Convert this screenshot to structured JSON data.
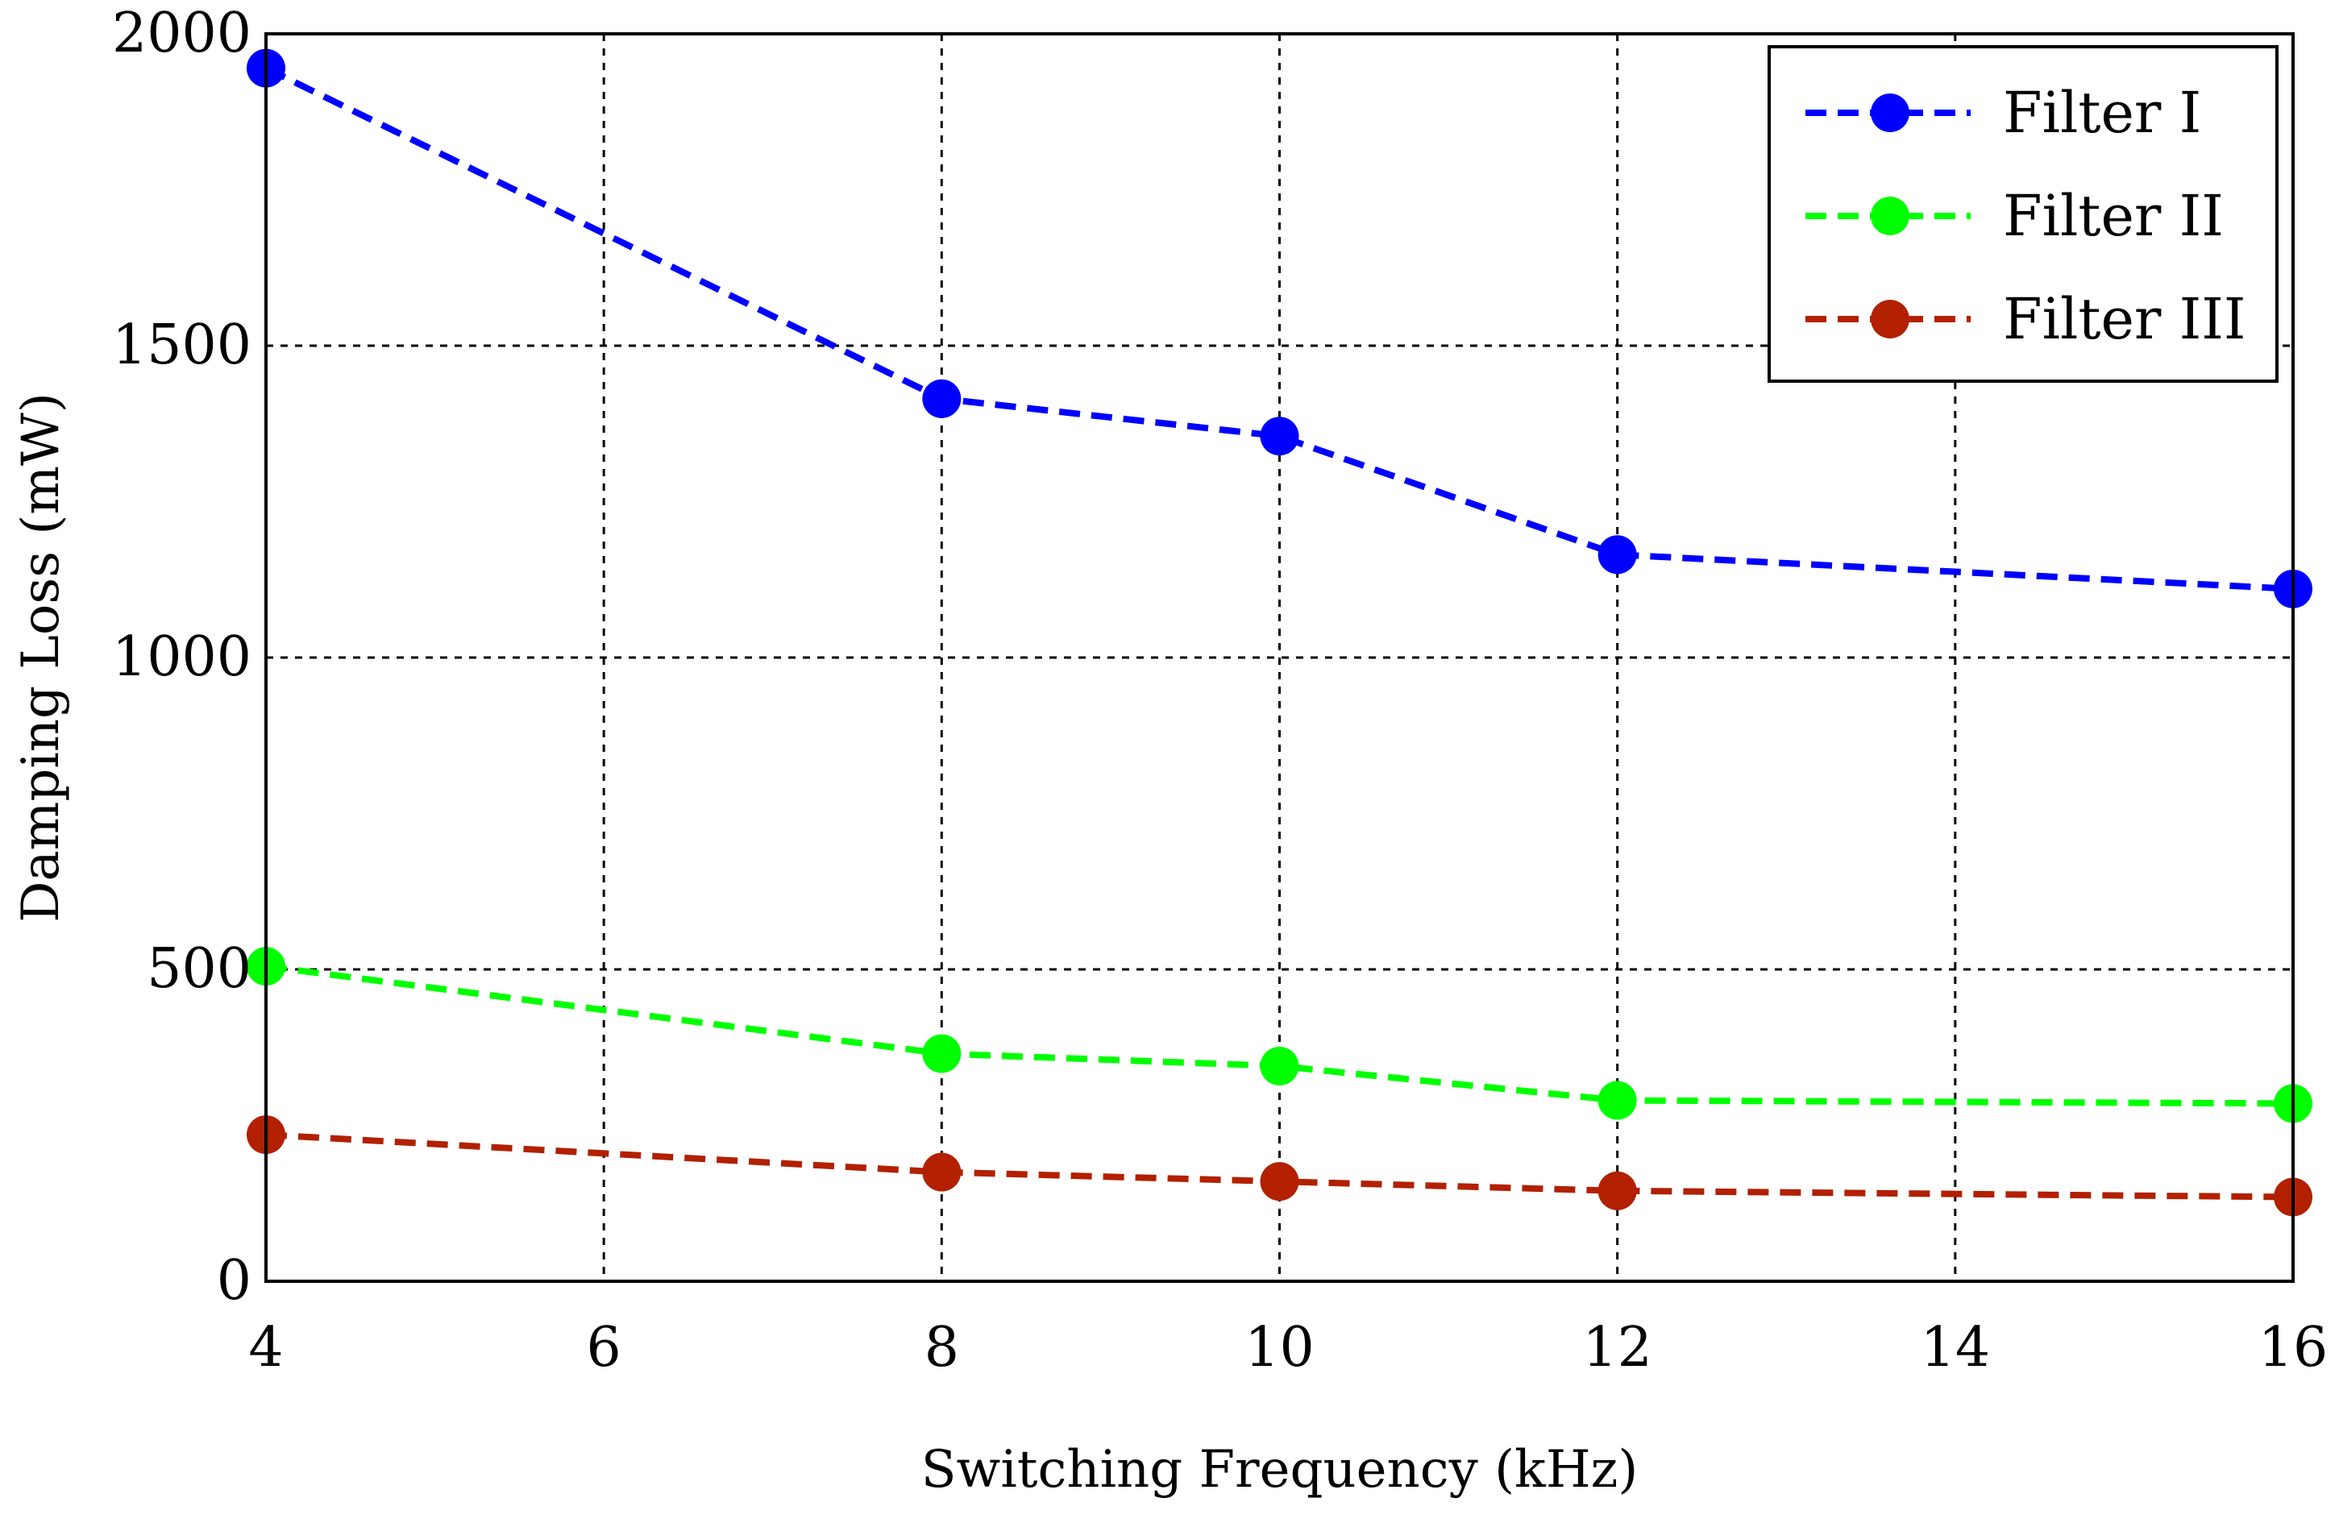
{
  "chart_data": {
    "type": "line",
    "title": "",
    "xlabel": "Switching Frequency (kHz)",
    "ylabel": "Damping Loss (mW)",
    "xlim": [
      4,
      16
    ],
    "ylim": [
      0,
      2000
    ],
    "xticks": [
      4,
      6,
      8,
      10,
      12,
      14,
      16
    ],
    "yticks": [
      0,
      500,
      1000,
      1500,
      2000
    ],
    "grid": true,
    "legend_position": "top-right",
    "series": [
      {
        "name": "Filter I",
        "color": "#0000ff",
        "x": [
          4,
          8,
          10,
          12,
          16
        ],
        "y": [
          1945,
          1415,
          1355,
          1165,
          1110
        ]
      },
      {
        "name": "Filter II",
        "color": "#00ff00",
        "x": [
          4,
          8,
          10,
          12,
          16
        ],
        "y": [
          505,
          365,
          345,
          290,
          285
        ]
      },
      {
        "name": "Filter III",
        "color": "#b22000",
        "x": [
          4,
          8,
          10,
          12,
          16
        ],
        "y": [
          235,
          175,
          160,
          145,
          135
        ]
      }
    ]
  }
}
